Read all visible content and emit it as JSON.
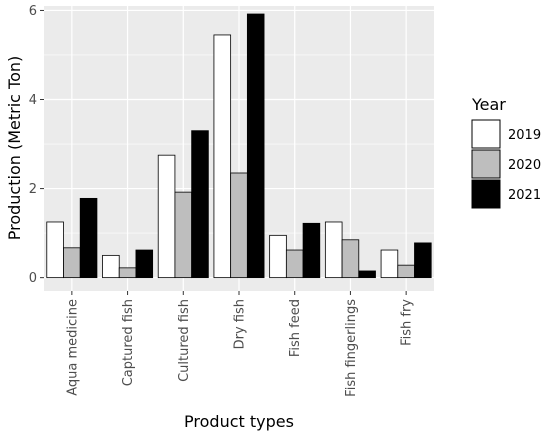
{
  "chart_data": {
    "type": "bar",
    "categories": [
      "Aqua medicine",
      "Captured fish",
      "Cultured fish",
      "Dry fish",
      "Fish feed",
      "Fish fingerlings",
      "Fish fry"
    ],
    "series": [
      {
        "name": "2019",
        "color": "#ffffff",
        "values": [
          1.25,
          0.5,
          2.75,
          5.45,
          0.95,
          1.25,
          0.62
        ]
      },
      {
        "name": "2020",
        "color": "#bebebe",
        "values": [
          0.67,
          0.22,
          1.92,
          2.35,
          0.62,
          0.85,
          0.28
        ]
      },
      {
        "name": "2021",
        "color": "#000000",
        "values": [
          1.78,
          0.62,
          3.3,
          5.92,
          1.22,
          0.15,
          0.78
        ]
      }
    ],
    "xlabel": "Product types",
    "ylabel": "Production (Metric Ton)",
    "ylim": [
      -0.3,
      6.1
    ],
    "yticks": [
      0,
      2,
      4,
      6
    ],
    "legend_title": "Year",
    "legend_position": "right",
    "grid": true,
    "panel_background": "#ebebeb",
    "grid_color": "#ffffff",
    "bar_outline": "#000000"
  }
}
